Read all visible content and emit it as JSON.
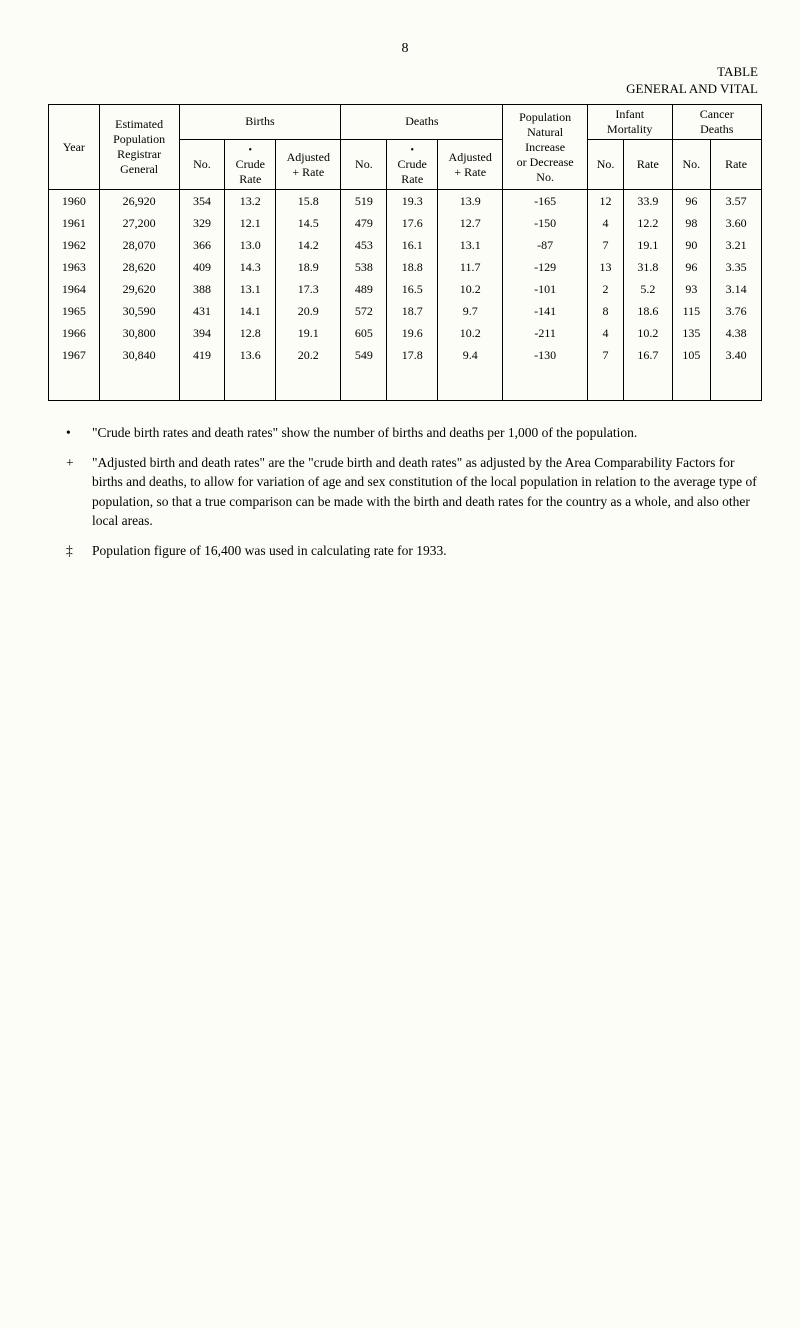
{
  "pageNumber": "8",
  "tableLabel": "TABLE",
  "tableSubtitle": "GENERAL AND VITAL",
  "headers": {
    "year": "Year",
    "estimated": "Estimated\nPopulation\nRegistrar\nGeneral",
    "births": "Births",
    "deaths": "Deaths",
    "no": "No.",
    "crudeBullet": "•\nCrude\nRate",
    "adjustedRateB": "Adjusted\n+ Rate",
    "crudeBulletD": "•\nCrude\nRate",
    "adjustedRateD": "Adjusted\n+ Rate",
    "popNatural": "Population\nNatural\nIncrease\nor Decrease\nNo.",
    "infant": "Infant\nMortality",
    "cancer": "Cancer\nDeaths",
    "rate": "Rate"
  },
  "rows": [
    {
      "year": "1960",
      "pop": "26,920",
      "bno": "354",
      "bcr": "13.2",
      "bar": "15.8",
      "dno": "519",
      "dcr": "19.3",
      "dar": "13.9",
      "nat": "-165",
      "imno": "12",
      "imrt": "33.9",
      "cano": "96",
      "cart": "3.57"
    },
    {
      "year": "1961",
      "pop": "27,200",
      "bno": "329",
      "bcr": "12.1",
      "bar": "14.5",
      "dno": "479",
      "dcr": "17.6",
      "dar": "12.7",
      "nat": "-150",
      "imno": "4",
      "imrt": "12.2",
      "cano": "98",
      "cart": "3.60"
    },
    {
      "year": "1962",
      "pop": "28,070",
      "bno": "366",
      "bcr": "13.0",
      "bar": "14.2",
      "dno": "453",
      "dcr": "16.1",
      "dar": "13.1",
      "nat": "-87",
      "imno": "7",
      "imrt": "19.1",
      "cano": "90",
      "cart": "3.21"
    },
    {
      "year": "1963",
      "pop": "28,620",
      "bno": "409",
      "bcr": "14.3",
      "bar": "18.9",
      "dno": "538",
      "dcr": "18.8",
      "dar": "11.7",
      "nat": "-129",
      "imno": "13",
      "imrt": "31.8",
      "cano": "96",
      "cart": "3.35"
    },
    {
      "year": "1964",
      "pop": "29,620",
      "bno": "388",
      "bcr": "13.1",
      "bar": "17.3",
      "dno": "489",
      "dcr": "16.5",
      "dar": "10.2",
      "nat": "-101",
      "imno": "2",
      "imrt": "5.2",
      "cano": "93",
      "cart": "3.14"
    },
    {
      "year": "1965",
      "pop": "30,590",
      "bno": "431",
      "bcr": "14.1",
      "bar": "20.9",
      "dno": "572",
      "dcr": "18.7",
      "dar": "9.7",
      "nat": "-141",
      "imno": "8",
      "imrt": "18.6",
      "cano": "115",
      "cart": "3.76"
    },
    {
      "year": "1966",
      "pop": "30,800",
      "bno": "394",
      "bcr": "12.8",
      "bar": "19.1",
      "dno": "605",
      "dcr": "19.6",
      "dar": "10.2",
      "nat": "-211",
      "imno": "4",
      "imrt": "10.2",
      "cano": "135",
      "cart": "4.38"
    },
    {
      "year": "1967",
      "pop": "30,840",
      "bno": "419",
      "bcr": "13.6",
      "bar": "20.2",
      "dno": "549",
      "dcr": "17.8",
      "dar": "9.4",
      "nat": "-130",
      "imno": "7",
      "imrt": "16.7",
      "cano": "105",
      "cart": "3.40"
    }
  ],
  "notes": {
    "star": "\"Crude birth rates and death rates\" show the number of births and deaths per 1,000 of the population.",
    "plus": "\"Adjusted birth and death rates\" are the \"crude birth and death rates\" as adjusted by the Area Comparability Factors for births and deaths, to allow for variation of age and sex constitution of the local population in relation to the average type of population, so that a true comparison can be made with the birth and death rates for the country as a whole, and also other local areas.",
    "ddagger": "Population figure of 16,400 was used in calculating rate for 1933."
  },
  "symbols": {
    "star": "•",
    "plus": "+",
    "ddagger": "‡"
  }
}
